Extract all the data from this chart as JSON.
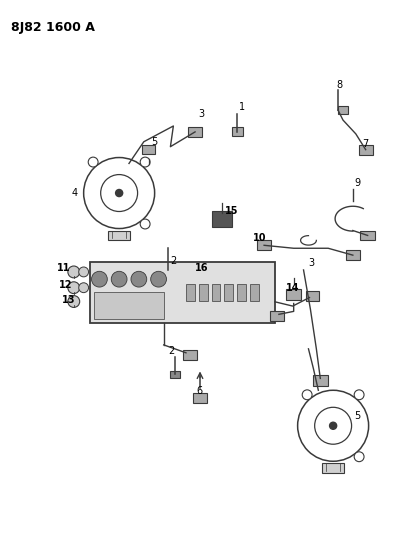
{
  "title": "8J82 1600 A",
  "bg_color": "#ffffff",
  "lc": "#3a3a3a",
  "tc": "#000000",
  "figsize": [
    4.0,
    5.33
  ],
  "dpi": 100
}
